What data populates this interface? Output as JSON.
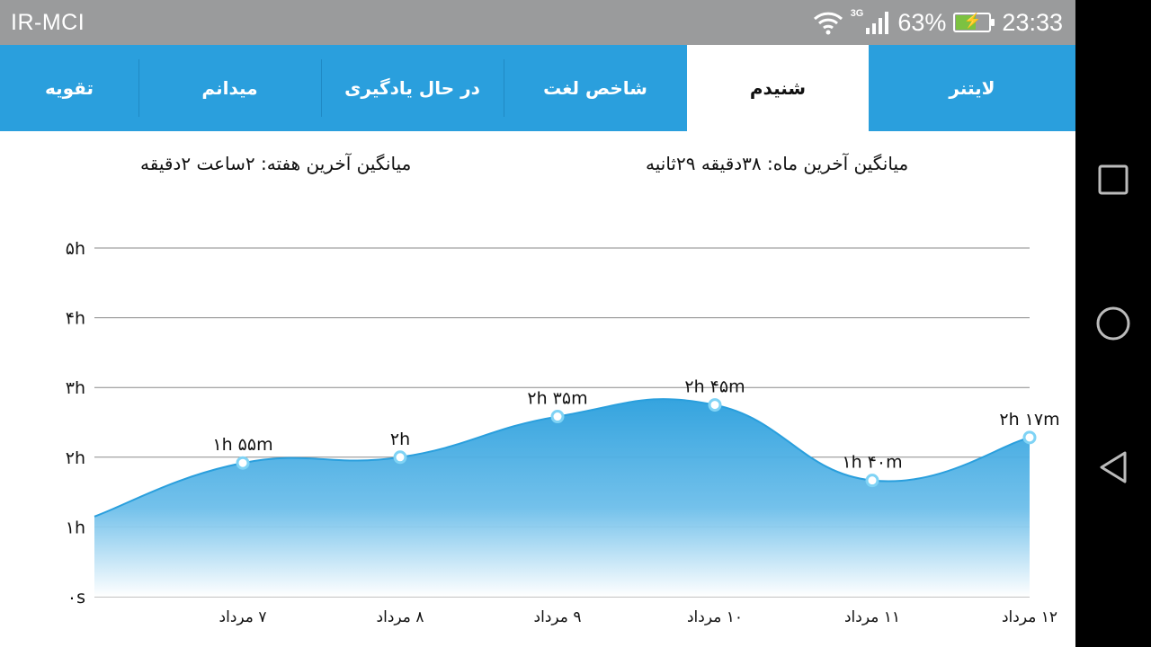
{
  "status_bar": {
    "carrier": "IR-MCI",
    "network": "3G",
    "battery": "63%",
    "battery_level": 0.63,
    "time": "23:33"
  },
  "tabs": [
    {
      "label": "لایتنر",
      "active": false
    },
    {
      "label": "شنیدم",
      "active": true
    },
    {
      "label": "شاخص لغت",
      "active": false
    },
    {
      "label": "در حال یادگیری",
      "active": false
    },
    {
      "label": "میدانم",
      "active": false
    },
    {
      "label": "تقویه",
      "active": false
    }
  ],
  "averages": {
    "month": "میانگین آخرین ماه: ۳۸دقیقه  ۲۹ثانیه",
    "week": "میانگین آخرین هفته: ۲ساعت  ۲دقیقه"
  },
  "chart_data": {
    "type": "area",
    "y_tick_labels": [
      "۰s",
      "۱h",
      "۲h",
      "۳h",
      "۴h",
      "۵h"
    ],
    "ylim": [
      0,
      5
    ],
    "grid": true,
    "x_labels": [
      "۷ مرداد",
      "۸ مرداد",
      "۹ مرداد",
      "۱۰ مرداد",
      "۱۱ مرداد",
      "۱۲ مرداد"
    ],
    "points": [
      {
        "x": "۷ مرداد",
        "y": 1.917,
        "label": "۱h ۵۵m"
      },
      {
        "x": "۸ مرداد",
        "y": 2.0,
        "label": "۲h"
      },
      {
        "x": "۹ مرداد",
        "y": 2.583,
        "label": "۲h ۳۵m"
      },
      {
        "x": "۱۰ مرداد",
        "y": 2.75,
        "label": "۲h ۴۵m"
      },
      {
        "x": "۱۱ مرداد",
        "y": 1.667,
        "label": "۱h ۴۰m"
      },
      {
        "x": "۱۲ مرداد",
        "y": 2.283,
        "label": "۲h ۱۷m"
      }
    ],
    "colors": {
      "line": "#2a9fdd",
      "marker": "#7fd3f5",
      "grid": "#8a8a8a"
    }
  },
  "nav_bar": {
    "recents": "recents-icon",
    "home": "home-icon",
    "back": "back-icon"
  }
}
